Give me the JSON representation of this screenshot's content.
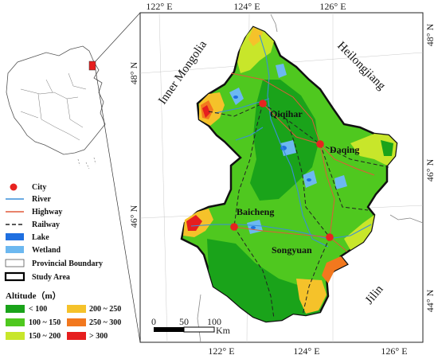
{
  "map": {
    "ticks_top": [
      "122° E",
      "124° E",
      "126° E"
    ],
    "ticks_bottom": [
      "122° E",
      "124° E",
      "126° E"
    ],
    "ticks_left": [
      "48° N",
      "46° N"
    ],
    "ticks_right": [
      "48° N",
      "46° N",
      "44° N"
    ],
    "regions": [
      "Inner Mongolia",
      "Heilongjiang",
      "Jilin"
    ],
    "cities": [
      "Qiqihar",
      "Daqing",
      "Baicheng",
      "Songyuan"
    ],
    "scale_bar": {
      "values": [
        "0",
        "50",
        "100"
      ],
      "unit": "Km"
    }
  },
  "legend": {
    "items": [
      {
        "label": "City",
        "type": "city",
        "color": "#e8231f"
      },
      {
        "label": "River",
        "type": "river",
        "color": "#3a8fd8"
      },
      {
        "label": "Highway",
        "type": "highway",
        "color": "#e05a3a"
      },
      {
        "label": "Railway",
        "type": "railway",
        "color": "#222222"
      },
      {
        "label": "Lake",
        "type": "lake",
        "color": "#1f6fe0"
      },
      {
        "label": "Wetland",
        "type": "wetland",
        "color": "#6cb8f0"
      },
      {
        "label": "Provincial Boundary",
        "type": "boundary",
        "color": "#ffffff"
      },
      {
        "label": "Study Area",
        "type": "study",
        "color": "#ffffff"
      }
    ],
    "altitude_title": "Altitude（m）",
    "altitude_classes": [
      {
        "label": "< 100",
        "color": "#1aa31a"
      },
      {
        "label": "100 ~ 150",
        "color": "#4fc81f"
      },
      {
        "label": "150 ~ 200",
        "color": "#c8e62a"
      },
      {
        "label": "200 ~ 250",
        "color": "#f5c22a"
      },
      {
        "label": "250 ~ 300",
        "color": "#f2781e"
      },
      {
        "label": "> 300",
        "color": "#e61e1e"
      }
    ]
  }
}
